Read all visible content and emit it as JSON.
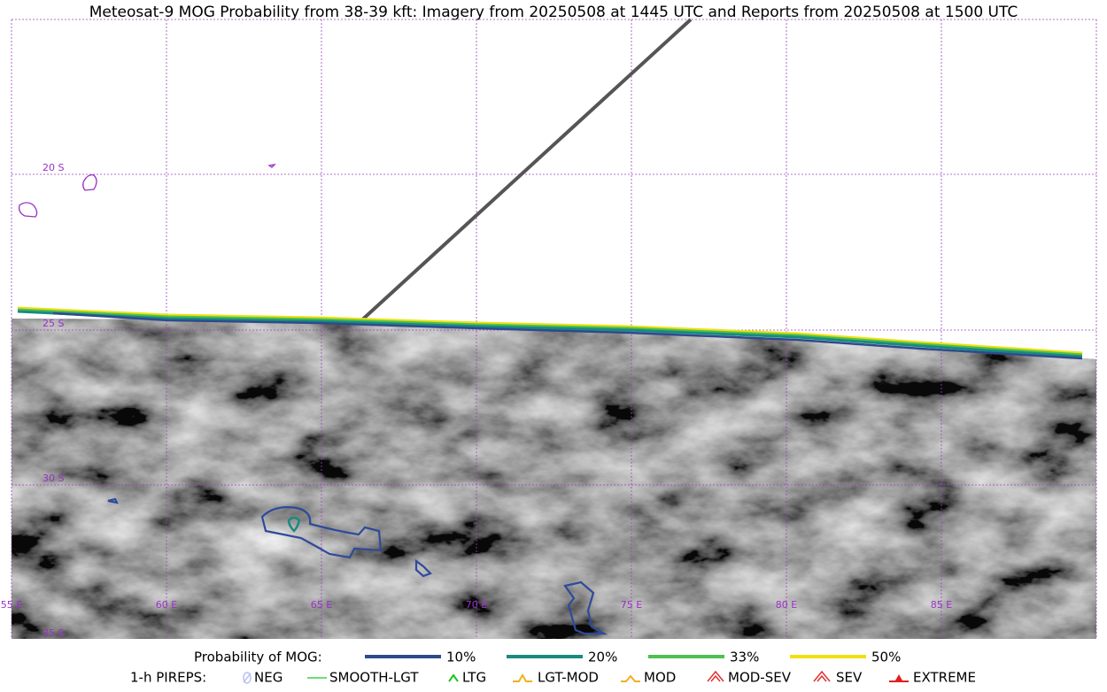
{
  "header": {
    "title": "Meteosat-9 MOG Probability from 38-39 kft: Imagery from 20250508 at 1445 UTC and Reports from 20250508 at 1500 UTC"
  },
  "map": {
    "lat_labels": [
      "20 S",
      "25 S",
      "30 S",
      "35 S"
    ],
    "lon_labels": [
      "55 E",
      "60 E",
      "65 E",
      "70 E",
      "75 E",
      "80 E",
      "85 E"
    ]
  },
  "legend": {
    "mog_title": "Probability of MOG:",
    "mog": [
      {
        "label": "10%",
        "color": "#2e4a8c"
      },
      {
        "label": "20%",
        "color": "#1a8a80"
      },
      {
        "label": "33%",
        "color": "#4cc050"
      },
      {
        "label": "50%",
        "color": "#f0e010"
      }
    ],
    "pireps_title": "1-h PIREPS:",
    "pireps": [
      {
        "label": "NEG",
        "color": "#b8c0f4"
      },
      {
        "label": "SMOOTH-LGT",
        "color": "#40d040"
      },
      {
        "label": "LTG",
        "color": "#20c020"
      },
      {
        "label": "LGT-MOD",
        "color": "#f0b020"
      },
      {
        "label": "MOD",
        "color": "#f0b020"
      },
      {
        "label": "MOD-SEV",
        "color": "#e03030"
      },
      {
        "label": "SEV",
        "color": "#e03030"
      },
      {
        "label": "EXTREME",
        "color": "#e02020"
      }
    ]
  }
}
